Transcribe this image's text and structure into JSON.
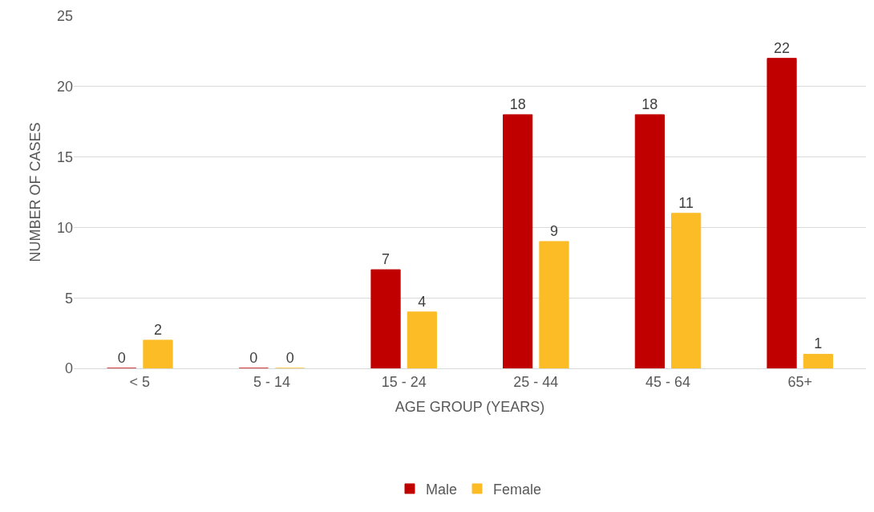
{
  "chart_data": {
    "type": "bar",
    "xlabel": "AGE GROUP (YEARS)",
    "ylabel": "NUMBER OF CASES",
    "categories": [
      "< 5",
      "5 - 14",
      "15 - 24",
      "25 - 44",
      "45 - 64",
      "65+"
    ],
    "series": [
      {
        "name": "Male",
        "color": "#c00000",
        "values": [
          0,
          0,
          7,
          18,
          18,
          22
        ]
      },
      {
        "name": "Female",
        "color": "#fbbc26",
        "values": [
          2,
          0,
          4,
          9,
          11,
          1
        ]
      }
    ],
    "ylim": [
      0,
      25
    ],
    "yticks": [
      0,
      5,
      10,
      15,
      20,
      25
    ],
    "grid": "y",
    "legend": "bottom",
    "data_labels": true
  }
}
